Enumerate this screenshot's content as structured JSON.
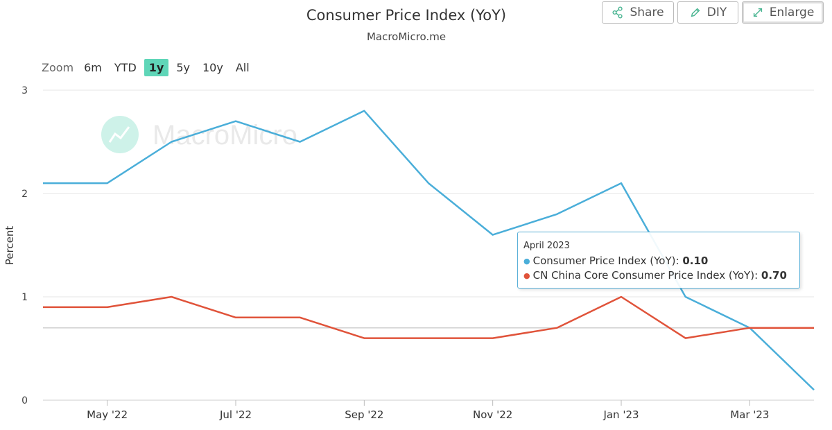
{
  "header": {
    "title": "Consumer Price Index (YoY)",
    "subtitle": "MacroMicro.me"
  },
  "toolbar": {
    "share_label": "Share",
    "diy_label": "DIY",
    "enlarge_label": "Enlarge"
  },
  "zoom": {
    "label": "Zoom",
    "options": [
      "6m",
      "YTD",
      "1y",
      "5y",
      "10y",
      "All"
    ],
    "selected": "1y"
  },
  "watermark": "MacroMicro",
  "tooltip": {
    "date": "April 2023",
    "rows": [
      {
        "label": "Consumer Price Index (YoY): ",
        "value": "0.10",
        "color": "#4aaed9"
      },
      {
        "label": "CN China Core Consumer Price Index (YoY): ",
        "value": "0.70",
        "color": "#e0533a"
      }
    ]
  },
  "chart_data": {
    "type": "line",
    "x": [
      "2022-04",
      "2022-05",
      "2022-06",
      "2022-07",
      "2022-08",
      "2022-09",
      "2022-10",
      "2022-11",
      "2022-12",
      "2023-01",
      "2023-02",
      "2023-03",
      "2023-04"
    ],
    "x_tick_labels": [
      "May '22",
      "Jul '22",
      "Sep '22",
      "Nov '22",
      "Jan '23",
      "Mar '23"
    ],
    "series": [
      {
        "name": "Consumer Price Index (YoY)",
        "color": "#4aaed9",
        "values": [
          2.1,
          2.1,
          2.5,
          2.7,
          2.5,
          2.8,
          2.1,
          1.6,
          1.8,
          2.1,
          1.0,
          0.7,
          0.1
        ]
      },
      {
        "name": "CN China Core Consumer Price Index (YoY)",
        "color": "#e0533a",
        "values": [
          0.9,
          0.9,
          1.0,
          0.8,
          0.8,
          0.6,
          0.6,
          0.6,
          0.7,
          1.0,
          0.6,
          0.7,
          0.7
        ]
      }
    ],
    "ylabel": "Percent",
    "ylim": [
      0,
      3
    ],
    "yticks": [
      0,
      1,
      2,
      3
    ],
    "grid": true,
    "highlight_y": 0.7
  }
}
